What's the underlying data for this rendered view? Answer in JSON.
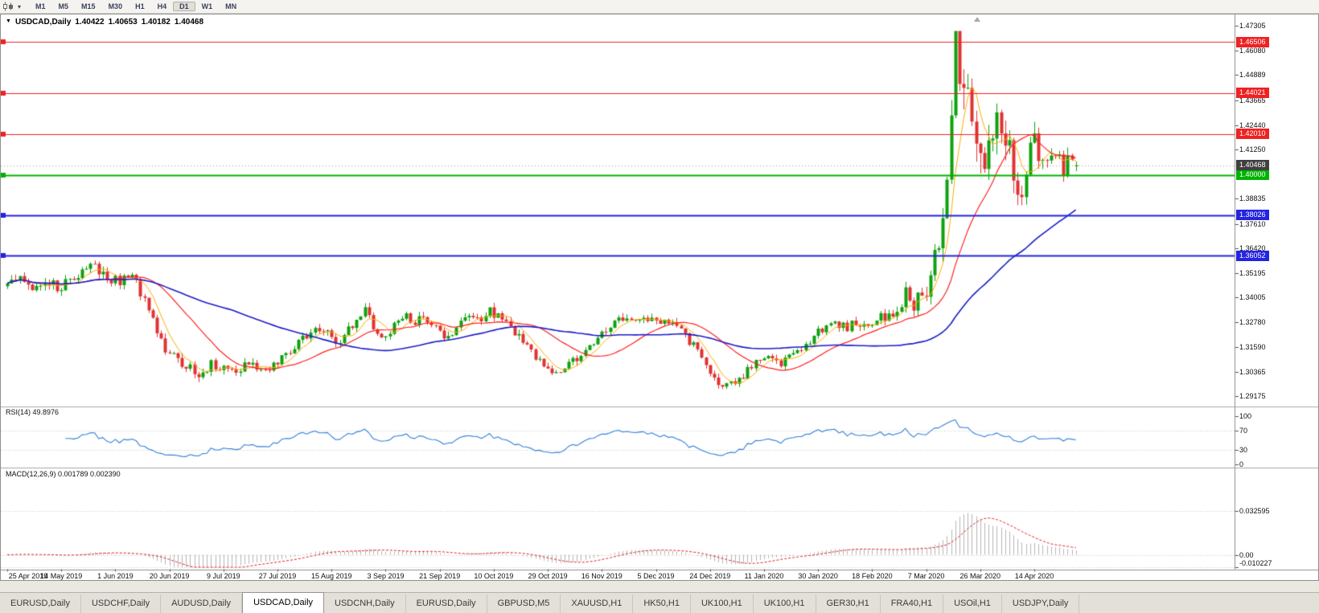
{
  "colors": {
    "up_candle": "#0ea10e",
    "down_candle": "#e03232",
    "ma_fast": "#ffaa00",
    "ma_mid": "#ff2020",
    "ma_slow": "#1c1cc8",
    "level_red": "#ee2222",
    "level_green": "#00b300",
    "level_blue": "#2424e0",
    "current_price_tag": "#404040",
    "current_price_line": "#999999",
    "rsi_line": "#2f7ed8",
    "macd_bars": "#b4b4b4",
    "macd_signal": "#e02020",
    "grid_dotted": "#c8c8c8"
  },
  "toolbar": {
    "dropdown_icon": "▾",
    "periods": [
      "M1",
      "M5",
      "M15",
      "M30",
      "H1",
      "H4",
      "D1",
      "W1",
      "MN"
    ],
    "active_period": "D1"
  },
  "chart_header": {
    "dropdown_icon": "▼",
    "symbol": "USDCAD,Daily",
    "open": "1.40422",
    "high": "1.40653",
    "low": "1.40182",
    "close": "1.40468"
  },
  "price_axis_ticks": [
    "1.47305",
    "1.46080",
    "1.44889",
    "1.43665",
    "1.42440",
    "1.41250",
    "1.38835",
    "1.37610",
    "1.36420",
    "1.35195",
    "1.34005",
    "1.32780",
    "1.31590",
    "1.30365",
    "1.29175"
  ],
  "levels": [
    {
      "value": 1.46506,
      "label": "1.46506",
      "color": "red"
    },
    {
      "value": 1.44021,
      "label": "1.44021",
      "color": "red"
    },
    {
      "value": 1.4201,
      "label": "1.42010",
      "color": "red"
    },
    {
      "value": 1.4,
      "label": "1.40000",
      "color": "green"
    },
    {
      "value": 1.38026,
      "label": "1.38026",
      "color": "blue"
    },
    {
      "value": 1.36052,
      "label": "1.36052",
      "color": "blue"
    }
  ],
  "current_price": {
    "value": 1.40468,
    "label": "1.40468"
  },
  "rsi_panel": {
    "label": "RSI(14) 49.8976",
    "ticks": [
      {
        "value": 100,
        "label": "100"
      },
      {
        "value": 70,
        "label": "70"
      },
      {
        "value": 30,
        "label": "30"
      },
      {
        "value": 0,
        "label": "0"
      }
    ],
    "dotted_levels": [
      70,
      30
    ]
  },
  "macd_panel": {
    "label": "MACD(12,26,9) 0.001789 0.002390",
    "ticks": [
      {
        "value": 0.032595,
        "label": "0.032595"
      },
      {
        "value": 0,
        "label": "0.00"
      },
      {
        "value": -0.010227,
        "label": "-0.010227"
      }
    ]
  },
  "tabs": {
    "active_index": 3,
    "items": [
      "EURUSD,Daily",
      "USDCHF,Daily",
      "AUDUSD,Daily",
      "USDCAD,Daily",
      "USDCNH,Daily",
      "EURUSD,Daily",
      "GBPUSD,M5",
      "XAUUSD,H1",
      "HK50,H1",
      "UK100,H1",
      "UK100,H1",
      "GER30,H1",
      "FRA40,H1",
      "USOil,H1",
      "USDJPY,Daily"
    ],
    "active_label": "USDCAD,Daily"
  },
  "chart_data": {
    "type": "candlestick",
    "title": "USDCAD,Daily",
    "symbol": "USDCAD",
    "period": "Daily",
    "visible_price_range": [
      1.29175,
      1.47305
    ],
    "x_axis_dates": [
      "25 Apr 2019",
      "14 May 2019",
      "1 Jun 2019",
      "20 Jun 2019",
      "9 Jul 2019",
      "27 Jul 2019",
      "15 Aug 2019",
      "3 Sep 2019",
      "21 Sep 2019",
      "10 Oct 2019",
      "29 Oct 2019",
      "16 Nov 2019",
      "5 Dec 2019",
      "24 Dec 2019",
      "11 Jan 2020",
      "30 Jan 2020",
      "18 Feb 2020",
      "7 Mar 2020",
      "26 Mar 2020",
      "14 Apr 2020"
    ],
    "candles_per_date_label": 13,
    "num_candles": 258,
    "ohlc_last": {
      "open": 1.40422,
      "high": 1.40653,
      "low": 1.40182,
      "close": 1.40468
    },
    "close_waypoints": [
      [
        0,
        1.3455
      ],
      [
        3,
        1.3495
      ],
      [
        6,
        1.346
      ],
      [
        9,
        1.3485
      ],
      [
        12,
        1.3445
      ],
      [
        15,
        1.349
      ],
      [
        18,
        1.353
      ],
      [
        21,
        1.3555
      ],
      [
        24,
        1.35
      ],
      [
        27,
        1.3475
      ],
      [
        30,
        1.351
      ],
      [
        32,
        1.343
      ],
      [
        34,
        1.333
      ],
      [
        36,
        1.323
      ],
      [
        38,
        1.315
      ],
      [
        40,
        1.311
      ],
      [
        43,
        1.306
      ],
      [
        46,
        1.303
      ],
      [
        49,
        1.307
      ],
      [
        52,
        1.305
      ],
      [
        55,
        1.303
      ],
      [
        58,
        1.308
      ],
      [
        61,
        1.305
      ],
      [
        64,
        1.307
      ],
      [
        67,
        1.312
      ],
      [
        70,
        1.318
      ],
      [
        73,
        1.323
      ],
      [
        76,
        1.325
      ],
      [
        78,
        1.32
      ],
      [
        80,
        1.316
      ],
      [
        82,
        1.324
      ],
      [
        84,
        1.33
      ],
      [
        86,
        1.334
      ],
      [
        88,
        1.325
      ],
      [
        90,
        1.319
      ],
      [
        92,
        1.324
      ],
      [
        94,
        1.328
      ],
      [
        96,
        1.331
      ],
      [
        98,
        1.328
      ],
      [
        100,
        1.33
      ],
      [
        102,
        1.326
      ],
      [
        104,
        1.322
      ],
      [
        106,
        1.319
      ],
      [
        108,
        1.324
      ],
      [
        110,
        1.329
      ],
      [
        112,
        1.332
      ],
      [
        114,
        1.33
      ],
      [
        116,
        1.333
      ],
      [
        119,
        1.329
      ],
      [
        122,
        1.323
      ],
      [
        125,
        1.315
      ],
      [
        128,
        1.308
      ],
      [
        131,
        1.3045
      ],
      [
        134,
        1.306
      ],
      [
        137,
        1.31
      ],
      [
        140,
        1.316
      ],
      [
        143,
        1.322
      ],
      [
        146,
        1.327
      ],
      [
        149,
        1.33
      ],
      [
        152,
        1.328
      ],
      [
        155,
        1.33
      ],
      [
        158,
        1.328
      ],
      [
        161,
        1.325
      ],
      [
        164,
        1.319
      ],
      [
        166,
        1.313
      ],
      [
        168,
        1.308
      ],
      [
        170,
        1.301
      ],
      [
        172,
        1.296
      ],
      [
        174,
        1.2975
      ],
      [
        176,
        1.3005
      ],
      [
        178,
        1.304
      ],
      [
        180,
        1.308
      ],
      [
        182,
        1.31
      ],
      [
        184,
        1.312
      ],
      [
        186,
        1.308
      ],
      [
        188,
        1.31
      ],
      [
        190,
        1.313
      ],
      [
        192,
        1.317
      ],
      [
        194,
        1.321
      ],
      [
        196,
        1.325
      ],
      [
        198,
        1.329
      ],
      [
        200,
        1.327
      ],
      [
        202,
        1.325
      ],
      [
        204,
        1.328
      ],
      [
        206,
        1.325
      ],
      [
        208,
        1.327
      ],
      [
        210,
        1.33
      ],
      [
        212,
        1.332
      ],
      [
        214,
        1.333
      ],
      [
        216,
        1.344
      ],
      [
        217,
        1.339
      ],
      [
        218,
        1.335
      ],
      [
        219,
        1.34
      ],
      [
        220,
        1.337
      ],
      [
        221,
        1.343
      ],
      [
        222,
        1.356
      ],
      [
        223,
        1.368
      ],
      [
        224,
        1.362
      ],
      [
        225,
        1.375
      ],
      [
        226,
        1.392
      ],
      [
        227,
        1.425
      ],
      [
        228,
        1.463
      ],
      [
        229,
        1.45
      ],
      [
        230,
        1.442
      ],
      [
        231,
        1.448
      ],
      [
        232,
        1.43
      ],
      [
        233,
        1.418
      ],
      [
        234,
        1.41
      ],
      [
        235,
        1.4
      ],
      [
        236,
        1.412
      ],
      [
        237,
        1.424
      ],
      [
        238,
        1.43
      ],
      [
        239,
        1.417
      ],
      [
        240,
        1.408
      ],
      [
        241,
        1.414
      ],
      [
        242,
        1.402
      ],
      [
        243,
        1.395
      ],
      [
        244,
        1.389
      ],
      [
        245,
        1.4
      ],
      [
        246,
        1.412
      ],
      [
        247,
        1.422
      ],
      [
        248,
        1.409
      ],
      [
        249,
        1.404
      ],
      [
        250,
        1.409
      ],
      [
        251,
        1.413
      ],
      [
        252,
        1.406
      ],
      [
        253,
        1.409
      ],
      [
        254,
        1.403
      ],
      [
        255,
        1.406
      ],
      [
        256,
        1.408
      ],
      [
        257,
        1.40468
      ]
    ],
    "range_waypoints": [
      [
        0,
        0.006
      ],
      [
        40,
        0.0055
      ],
      [
        80,
        0.005
      ],
      [
        120,
        0.005
      ],
      [
        160,
        0.005
      ],
      [
        200,
        0.0045
      ],
      [
        212,
        0.006
      ],
      [
        218,
        0.0085
      ],
      [
        222,
        0.012
      ],
      [
        225,
        0.016
      ],
      [
        227,
        0.022
      ],
      [
        229,
        0.028
      ],
      [
        232,
        0.026
      ],
      [
        235,
        0.021
      ],
      [
        238,
        0.018
      ],
      [
        242,
        0.015
      ],
      [
        246,
        0.013
      ],
      [
        250,
        0.0105
      ],
      [
        257,
        0.008
      ]
    ],
    "extremes": {
      "peak_index": 228,
      "peak_high": 1.4668,
      "trough_index": 172,
      "trough_low": 1.2952,
      "april_spike_index": 247,
      "april_spike_high": 1.426
    },
    "moving_averages": [
      {
        "period": 6,
        "color_key": "ma_fast"
      },
      {
        "period": 20,
        "color_key": "ma_mid"
      },
      {
        "period": 55,
        "color_key": "ma_slow"
      }
    ],
    "indicators": [
      {
        "name": "RSI",
        "period": 14,
        "value": 49.8976,
        "levels": [
          70,
          30
        ]
      },
      {
        "name": "MACD",
        "fast": 12,
        "slow": 26,
        "signal_period": 9,
        "main_value": 0.001789,
        "signal_value": 0.00239
      }
    ],
    "horizontal_lines": [
      {
        "value": 1.46506,
        "color": "red"
      },
      {
        "value": 1.44021,
        "color": "red"
      },
      {
        "value": 1.4201,
        "color": "red"
      },
      {
        "value": 1.4,
        "color": "green"
      },
      {
        "value": 1.38026,
        "color": "blue"
      },
      {
        "value": 1.36052,
        "color": "blue"
      }
    ]
  }
}
